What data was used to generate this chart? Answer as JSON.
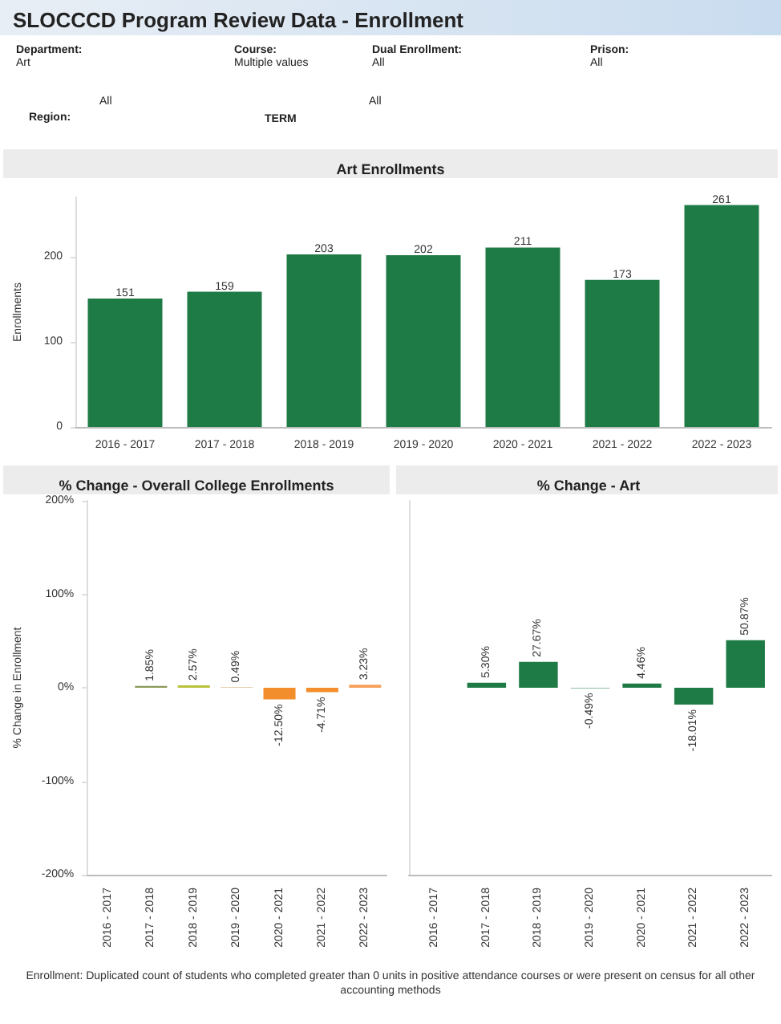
{
  "chart_data": [
    {
      "type": "bar",
      "title": "Art Enrollments",
      "ylabel": "Enrollments",
      "annotations": [
        "SLOCCCD Program Review Data - Enrollment",
        "Department:",
        "Art",
        "Course:",
        "Multiple values",
        "Dual Enrollment:",
        "All",
        "Prison:",
        "All",
        "Region:",
        "All",
        "TERM",
        "All"
      ],
      "categories": [
        "2016 - 2017",
        "2017 - 2018",
        "2018 - 2019",
        "2019 - 2020",
        "2020 - 2021",
        "2021 - 2022",
        "2022 - 2023"
      ],
      "values": [
        151,
        159,
        203,
        202,
        211,
        173,
        261
      ],
      "color": "#1e7b45",
      "data_labels": true,
      "ylim": [
        0,
        270
      ],
      "yticks": [
        0,
        100,
        200
      ]
    },
    {
      "type": "bar",
      "title": "% Change - Overall College Enrollments",
      "ylabel": "% Change in Enrollment",
      "categories": [
        "2016 - 2017",
        "2017 - 2018",
        "2018 - 2019",
        "2019 - 2020",
        "2020 - 2021",
        "2021 - 2022",
        "2022 - 2023"
      ],
      "values": [
        null,
        1.85,
        2.57,
        0.49,
        -12.5,
        -4.71,
        3.23
      ],
      "colors": [
        "#f28e2b",
        "#8c9a5a",
        "#b9c23a",
        "#c8a25c",
        "#f28e2b",
        "#f28e2b",
        "#f5a05a"
      ],
      "value_labels": [
        null,
        "1.85%",
        "2.57%",
        "0.49%",
        "-12.50%",
        "-4.71%",
        "3.23%"
      ],
      "ylim": [
        -200,
        200
      ],
      "yticks": [
        {
          "value": -200,
          "label": "-200%"
        },
        {
          "value": -100,
          "label": "-100%"
        },
        {
          "value": 0,
          "label": "0%"
        },
        {
          "value": 100,
          "label": "100%"
        },
        {
          "value": 200,
          "label": "200%"
        }
      ]
    },
    {
      "type": "bar",
      "title": "% Change - Art",
      "categories": [
        "2016 - 2017",
        "2017 - 2018",
        "2018 - 2019",
        "2019 - 2020",
        "2020 - 2021",
        "2021 - 2022",
        "2022 - 2023"
      ],
      "values": [
        null,
        5.3,
        27.67,
        -0.49,
        4.46,
        -18.01,
        50.87
      ],
      "color": "#1e7b45",
      "value_labels": [
        null,
        "5.30%",
        "27.67%",
        "-0.49%",
        "4.46%",
        "-18.01%",
        "50.87%"
      ],
      "ylim": [
        -200,
        200
      ],
      "tick_labels": "x",
      "annotations": [
        "Enrollment: Duplicated count of students who completed greater than 0 units in positive attendance courses or were present on census for all other accounting methods"
      ]
    }
  ]
}
